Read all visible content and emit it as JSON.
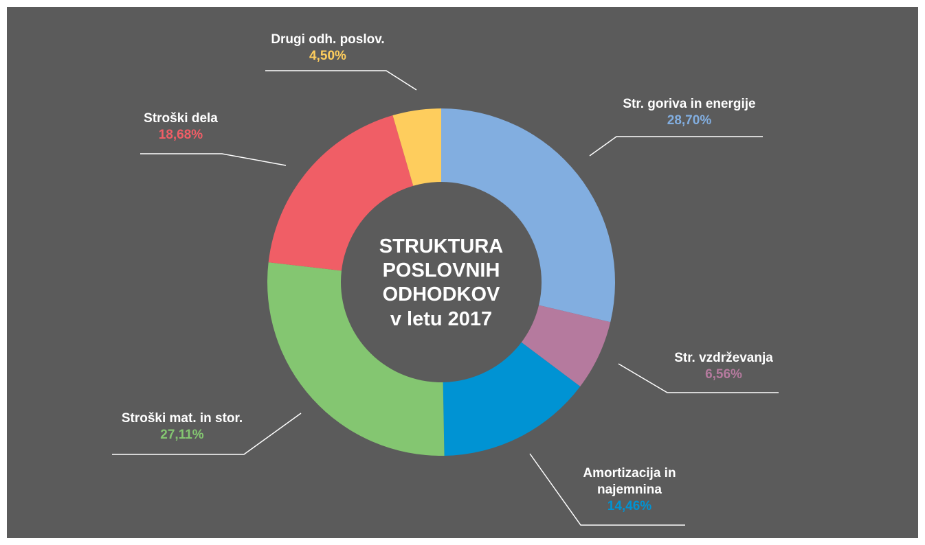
{
  "chart_data": {
    "type": "donut",
    "title": [
      "STRUKTURA",
      "POSLOVNIH",
      "ODHODKOV",
      "v letu 2017"
    ],
    "categories": [
      "Str. goriva in energije",
      "Str. vzdrževanja",
      "Amortizacija in najemnina",
      "Stroški mat. in stor.",
      "Stroški dela",
      "Drugi odh. poslov."
    ],
    "values": [
      28.7,
      6.56,
      14.46,
      27.11,
      18.68,
      4.5
    ],
    "value_labels": [
      "28,70%",
      "6,56%",
      "14,46%",
      "27,11%",
      "18,68%",
      "4,50%"
    ],
    "colors": [
      "#82aee0",
      "#b57a9e",
      "#0093d3",
      "#84c671",
      "#f05e66",
      "#fecd5d"
    ]
  }
}
